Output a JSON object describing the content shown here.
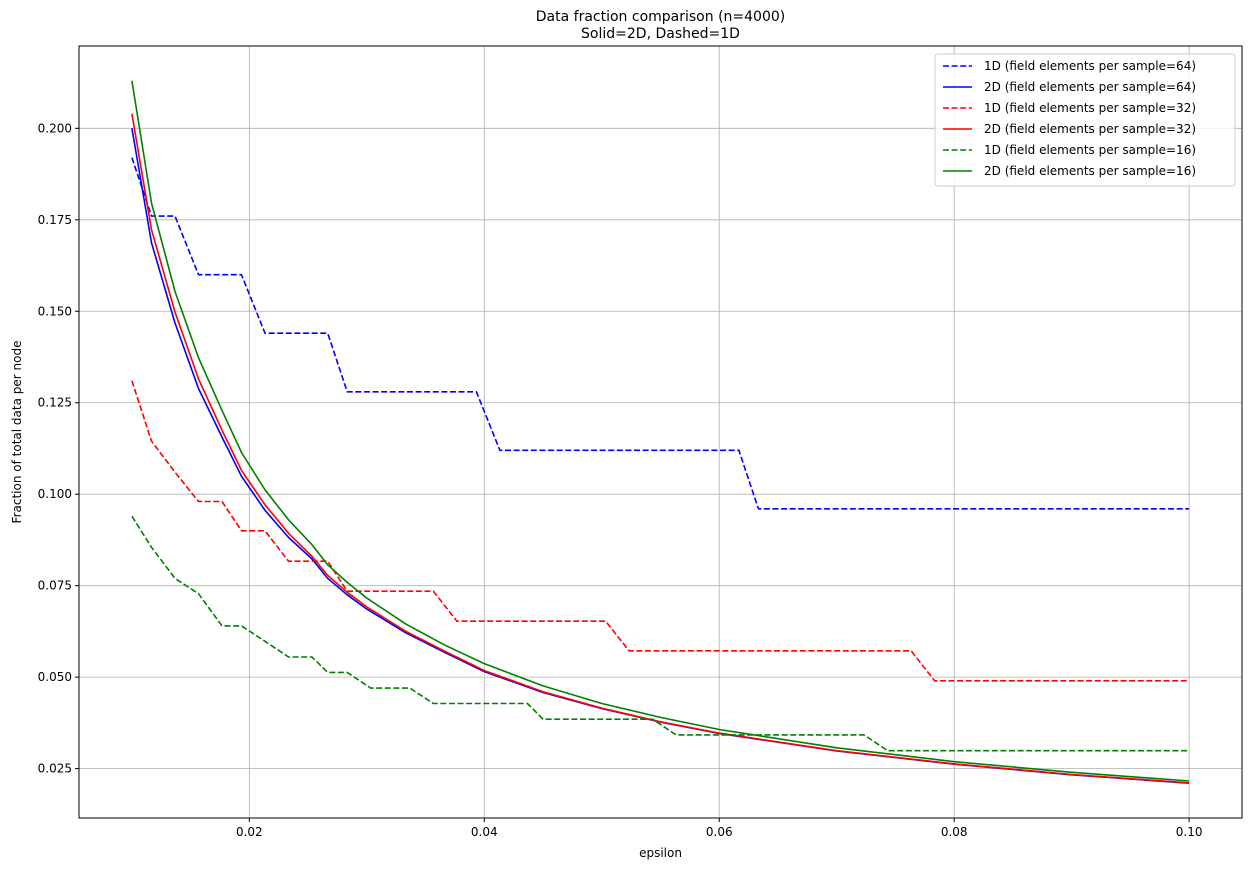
{
  "chart_data": {
    "type": "line",
    "title": "Data fraction comparison (n=4000)",
    "subtitle": "Solid=2D, Dashed=1D",
    "xlabel": "epsilon",
    "ylabel": "Fraction of total data per node",
    "xlim": [
      0.0055,
      0.1045
    ],
    "ylim": [
      0.0115,
      0.2225
    ],
    "xticks": [
      0.02,
      0.04,
      0.06,
      0.08,
      0.1
    ],
    "xtick_labels": [
      "0.02",
      "0.04",
      "0.06",
      "0.08",
      "0.10"
    ],
    "yticks": [
      0.025,
      0.05,
      0.075,
      0.1,
      0.125,
      0.15,
      0.175,
      0.2
    ],
    "ytick_labels": [
      "0.025",
      "0.050",
      "0.075",
      "0.100",
      "0.125",
      "0.150",
      "0.175",
      "0.200"
    ],
    "grid": true,
    "legend_position": "top-right",
    "series": [
      {
        "name": "1D (field elements per sample=64)",
        "color": "#0000ff",
        "dashed": true,
        "points": [
          [
            0.01,
            0.192
          ],
          [
            0.01167,
            0.176
          ],
          [
            0.01367,
            0.176
          ],
          [
            0.01567,
            0.16
          ],
          [
            0.01933,
            0.16
          ],
          [
            0.02133,
            0.144
          ],
          [
            0.02667,
            0.144
          ],
          [
            0.02833,
            0.128
          ],
          [
            0.03933,
            0.128
          ],
          [
            0.04133,
            0.112
          ],
          [
            0.06167,
            0.112
          ],
          [
            0.06333,
            0.096
          ],
          [
            0.1,
            0.096
          ]
        ]
      },
      {
        "name": "2D (field elements per sample=64)",
        "color": "#0000ff",
        "dashed": false,
        "points": [
          [
            0.01,
            0.2
          ],
          [
            0.01167,
            0.1687
          ],
          [
            0.01367,
            0.1468
          ],
          [
            0.01567,
            0.1289
          ],
          [
            0.01767,
            0.1156
          ],
          [
            0.01933,
            0.1049
          ],
          [
            0.02133,
            0.0956
          ],
          [
            0.02333,
            0.0882
          ],
          [
            0.02533,
            0.0823
          ],
          [
            0.02667,
            0.077
          ],
          [
            0.02833,
            0.0725
          ],
          [
            0.03,
            0.0686
          ],
          [
            0.03333,
            0.0621
          ],
          [
            0.03667,
            0.0567
          ],
          [
            0.04,
            0.0515
          ],
          [
            0.045,
            0.0458
          ],
          [
            0.05,
            0.0414
          ],
          [
            0.055,
            0.0377
          ],
          [
            0.06,
            0.0346
          ],
          [
            0.07,
            0.0298
          ],
          [
            0.08,
            0.0262
          ],
          [
            0.09,
            0.0233
          ],
          [
            0.1,
            0.021
          ]
        ]
      },
      {
        "name": "1D (field elements per sample=32)",
        "color": "#ff0000",
        "dashed": true,
        "points": [
          [
            0.01,
            0.131
          ],
          [
            0.01167,
            0.1145
          ],
          [
            0.01367,
            0.106
          ],
          [
            0.01567,
            0.098
          ],
          [
            0.01767,
            0.098
          ],
          [
            0.01933,
            0.09
          ],
          [
            0.02133,
            0.09
          ],
          [
            0.02333,
            0.0817
          ],
          [
            0.02667,
            0.0817
          ],
          [
            0.02833,
            0.0735
          ],
          [
            0.03567,
            0.0735
          ],
          [
            0.03767,
            0.0653
          ],
          [
            0.05033,
            0.0653
          ],
          [
            0.05233,
            0.0572
          ],
          [
            0.07633,
            0.0572
          ],
          [
            0.07833,
            0.049
          ],
          [
            0.1,
            0.049
          ]
        ]
      },
      {
        "name": "2D (field elements per sample=32)",
        "color": "#ff0000",
        "dashed": false,
        "points": [
          [
            0.01,
            0.204
          ],
          [
            0.01167,
            0.1723
          ],
          [
            0.01367,
            0.1498
          ],
          [
            0.01567,
            0.1315
          ],
          [
            0.01767,
            0.1175
          ],
          [
            0.01933,
            0.1065
          ],
          [
            0.02133,
            0.0971
          ],
          [
            0.02333,
            0.0893
          ],
          [
            0.02533,
            0.083
          ],
          [
            0.02667,
            0.0778
          ],
          [
            0.02833,
            0.0732
          ],
          [
            0.03,
            0.0692
          ],
          [
            0.03333,
            0.0625
          ],
          [
            0.03667,
            0.057
          ],
          [
            0.04,
            0.0518
          ],
          [
            0.045,
            0.046
          ],
          [
            0.05,
            0.0415
          ],
          [
            0.055,
            0.0378
          ],
          [
            0.06,
            0.0347
          ],
          [
            0.07,
            0.0299
          ],
          [
            0.08,
            0.0263
          ],
          [
            0.09,
            0.0234
          ],
          [
            0.1,
            0.0211
          ]
        ]
      },
      {
        "name": "1D (field elements per sample=16)",
        "color": "#008000",
        "dashed": true,
        "points": [
          [
            0.01,
            0.094
          ],
          [
            0.01167,
            0.0855
          ],
          [
            0.01367,
            0.077
          ],
          [
            0.01567,
            0.0728
          ],
          [
            0.01767,
            0.064
          ],
          [
            0.01933,
            0.064
          ],
          [
            0.02133,
            0.0598
          ],
          [
            0.02333,
            0.0555
          ],
          [
            0.02533,
            0.0555
          ],
          [
            0.02667,
            0.0513
          ],
          [
            0.02833,
            0.0513
          ],
          [
            0.03033,
            0.047
          ],
          [
            0.03367,
            0.047
          ],
          [
            0.03567,
            0.0428
          ],
          [
            0.04167,
            0.0428
          ],
          [
            0.04367,
            0.0428
          ],
          [
            0.045,
            0.0385
          ],
          [
            0.05433,
            0.0385
          ],
          [
            0.05633,
            0.0342
          ],
          [
            0.07233,
            0.0342
          ],
          [
            0.07433,
            0.0299
          ],
          [
            0.1,
            0.0299
          ]
        ]
      },
      {
        "name": "2D (field elements per sample=16)",
        "color": "#008000",
        "dashed": false,
        "points": [
          [
            0.01,
            0.213
          ],
          [
            0.01167,
            0.1796
          ],
          [
            0.01367,
            0.1554
          ],
          [
            0.01567,
            0.1373
          ],
          [
            0.01767,
            0.1229
          ],
          [
            0.01933,
            0.1114
          ],
          [
            0.02133,
            0.1012
          ],
          [
            0.02333,
            0.093
          ],
          [
            0.02533,
            0.0862
          ],
          [
            0.02667,
            0.0807
          ],
          [
            0.02833,
            0.0759
          ],
          [
            0.03,
            0.0716
          ],
          [
            0.03333,
            0.0645
          ],
          [
            0.03667,
            0.0587
          ],
          [
            0.04,
            0.0537
          ],
          [
            0.045,
            0.0476
          ],
          [
            0.05,
            0.0428
          ],
          [
            0.055,
            0.039
          ],
          [
            0.06,
            0.0357
          ],
          [
            0.07,
            0.0307
          ],
          [
            0.08,
            0.0269
          ],
          [
            0.09,
            0.024
          ],
          [
            0.1,
            0.0216
          ]
        ]
      }
    ]
  }
}
